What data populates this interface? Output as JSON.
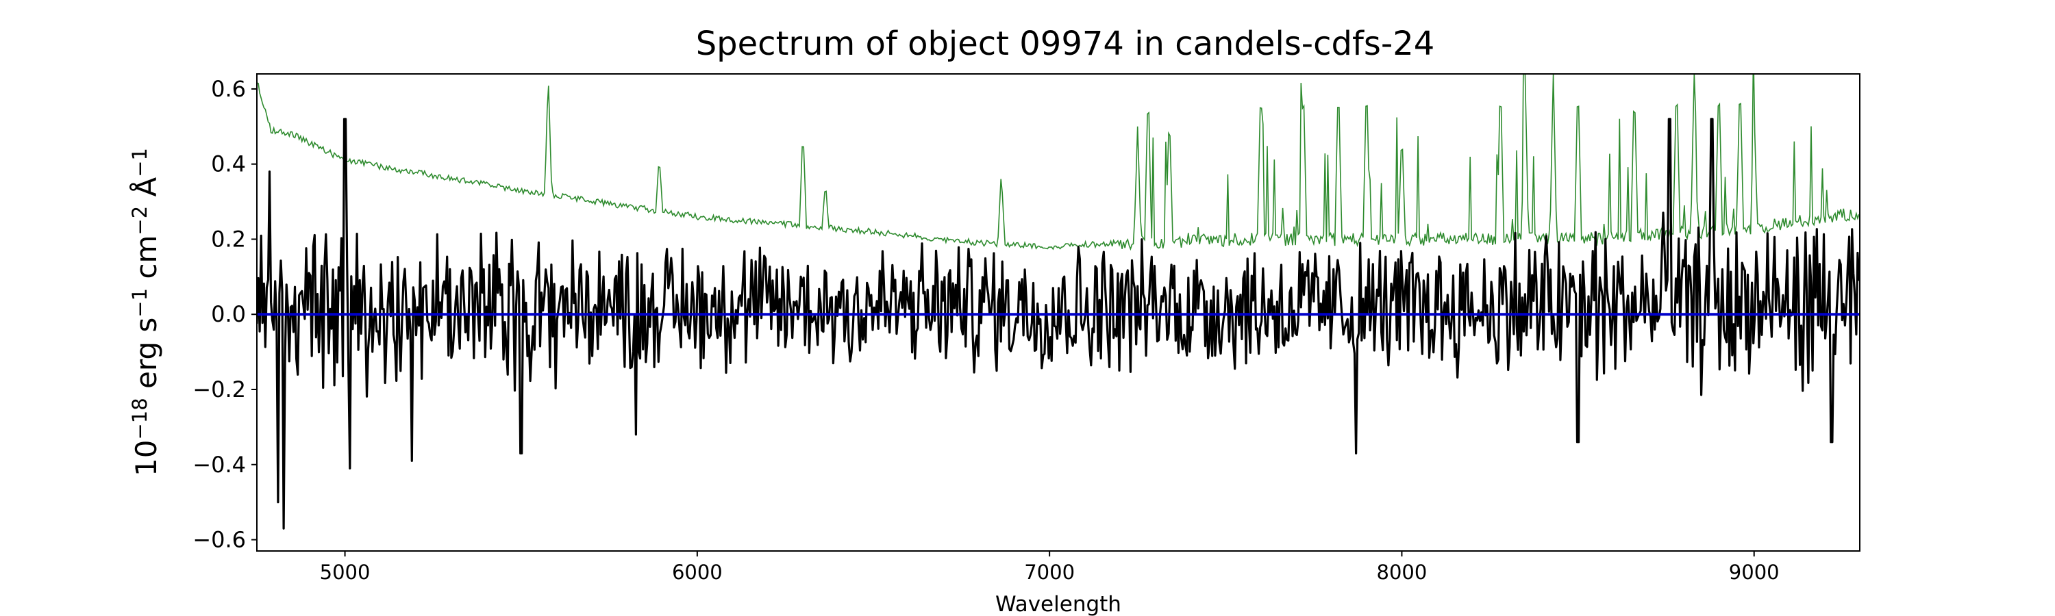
{
  "chart_data": {
    "type": "line",
    "title": "Spectrum of object 09974 in candels-cdfs-24",
    "xlabel": "Wavelength",
    "ylabel": {
      "text": "10^-18 erg s^-1 cm^-2 Å^-1",
      "parts": [
        "10",
        "−18",
        " erg s",
        "−1",
        " cm",
        "−2",
        " Å",
        "−1"
      ]
    },
    "xlim": [
      4750,
      9300
    ],
    "ylim": [
      -0.63,
      0.64
    ],
    "x_ticks": [
      5000,
      6000,
      7000,
      8000,
      9000
    ],
    "x_tick_labels": [
      "5000",
      "6000",
      "7000",
      "8000",
      "9000"
    ],
    "y_ticks": [
      -0.6,
      -0.4,
      -0.2,
      0.0,
      0.2,
      0.4,
      0.6
    ],
    "y_tick_labels": [
      "−0.6",
      "−0.4",
      "−0.2",
      "0.0",
      "0.2",
      "0.4",
      "0.6"
    ],
    "grid": false,
    "series": [
      {
        "role": "zero-level",
        "color": "#0000cc",
        "x": [
          4750,
          9300
        ],
        "y": [
          0.0,
          0.0
        ]
      },
      {
        "role": "error",
        "color": "#2e8b2e",
        "baseline_x": [
          4750,
          4790,
          4850,
          5000,
          5500,
          6000,
          6500,
          6800,
          7000,
          7200,
          7600,
          8000,
          8500,
          8700,
          9000,
          9300
        ],
        "baseline_y": [
          0.62,
          0.49,
          0.48,
          0.41,
          0.33,
          0.26,
          0.22,
          0.19,
          0.18,
          0.19,
          0.2,
          0.2,
          0.2,
          0.21,
          0.23,
          0.27
        ],
        "emission_lines": [
          {
            "x": 5577,
            "peak": 0.64
          },
          {
            "x": 5892,
            "peak": 0.42
          },
          {
            "x": 6300,
            "peak": 0.5
          },
          {
            "x": 6364,
            "peak": 0.35
          },
          {
            "x": 6863,
            "peak": 0.38
          },
          {
            "x": 7250,
            "peak": 0.5
          },
          {
            "x": 7280,
            "peak": 0.62
          },
          {
            "x": 7340,
            "peak": 0.55
          },
          {
            "x": 7600,
            "peak": 0.64
          },
          {
            "x": 7720,
            "peak": 0.64
          },
          {
            "x": 7820,
            "peak": 0.64
          },
          {
            "x": 7900,
            "peak": 0.64
          },
          {
            "x": 8000,
            "peak": 0.5
          },
          {
            "x": 8280,
            "peak": 0.64
          },
          {
            "x": 8350,
            "peak": 0.64
          },
          {
            "x": 8430,
            "peak": 0.64
          },
          {
            "x": 8500,
            "peak": 0.64
          },
          {
            "x": 8660,
            "peak": 0.62
          },
          {
            "x": 8780,
            "peak": 0.64
          },
          {
            "x": 8830,
            "peak": 0.64
          },
          {
            "x": 8900,
            "peak": 0.64
          },
          {
            "x": 8960,
            "peak": 0.64
          },
          {
            "x": 9000,
            "peak": 0.55
          }
        ],
        "noise_amplitude": 0.04
      },
      {
        "role": "flux",
        "color": "#000000",
        "notable_points": [
          {
            "x": 4785,
            "y": 0.38
          },
          {
            "x": 4810,
            "y": -0.5
          },
          {
            "x": 4825,
            "y": -0.57
          },
          {
            "x": 5000,
            "y": 0.52
          },
          {
            "x": 5015,
            "y": -0.41
          },
          {
            "x": 5190,
            "y": -0.39
          },
          {
            "x": 5500,
            "y": -0.37
          },
          {
            "x": 5825,
            "y": -0.32
          },
          {
            "x": 7870,
            "y": -0.37
          },
          {
            "x": 8500,
            "y": -0.34
          },
          {
            "x": 8760,
            "y": 0.52
          },
          {
            "x": 8880,
            "y": 0.52
          },
          {
            "x": 9220,
            "y": -0.34
          }
        ],
        "noise_amplitude": 0.13
      }
    ]
  }
}
